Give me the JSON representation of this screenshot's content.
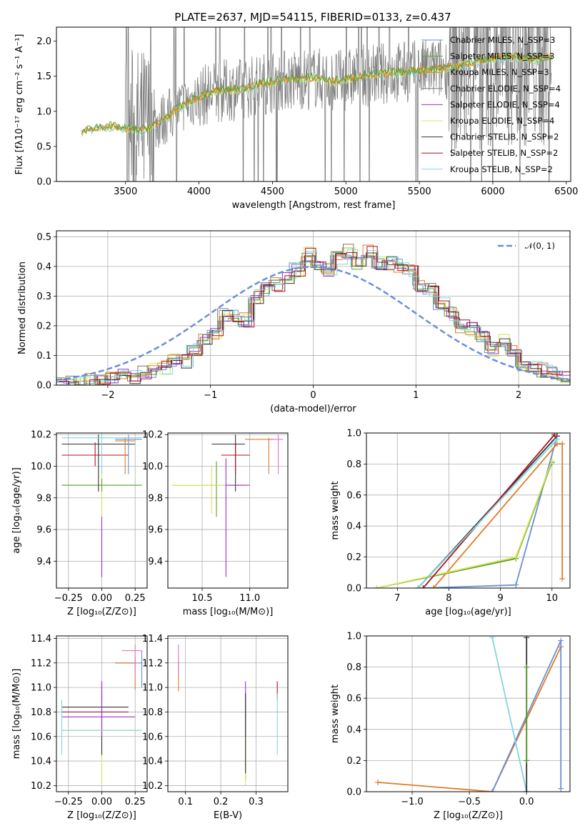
{
  "title": "PLATE=2637, MJD=54115, FIBERID=0133, z=0.437",
  "colors": {
    "chabrier_miles": "#6a8fd8",
    "salpeter_miles": "#5aa02c",
    "kroupa_miles": "#e07b2a",
    "chabrier_elodie": "#777777",
    "salpeter_elodie": "#9b30d0",
    "kroupa_elodie": "#d8e35a",
    "chabrier_stelib": "#333333",
    "salpeter_stelib": "#b01020",
    "kroupa_stelib": "#7fd6e0",
    "pink": "#e377c2",
    "gaussian": "#6a8fd8",
    "grid": "#b0b0b0"
  },
  "chart_data": [
    {
      "id": "spectrum",
      "type": "line",
      "xlabel": "wavelength [Angstrom, rest frame]",
      "ylabel": "Flux [fλ10⁻¹⁷ erg cm⁻² s⁻¹ A⁻¹]",
      "xlim": [
        3030,
        6530
      ],
      "ylim": [
        0,
        2.2
      ],
      "xticks": [
        "3500",
        "4000",
        "4500",
        "5000",
        "5500",
        "6000",
        "6500"
      ],
      "yticks": [
        "0.0",
        "0.5",
        "1.0",
        "1.5",
        "2.0"
      ],
      "legend_position": "top-right",
      "legend": [
        "Chabrier MILES, N_SSP=3",
        "Salpeter MILES, N_SSP=3",
        "Kroupa MILES, N_SSP=3",
        "Chabrier ELODIE, N_SSP=4",
        "Salpeter ELODIE, N_SSP=4",
        "Kroupa ELODIE, N_SSP=4",
        "Chabrier STELIB, N_SSP=2",
        "Salpeter STELIB, N_SSP=2",
        "Kroupa STELIB, N_SSP=2"
      ],
      "series": [
        {
          "x": [
            3200,
            3300,
            3400,
            3500,
            3600,
            3700,
            3800,
            3900,
            4000,
            4100,
            4200,
            4300,
            4400,
            4500,
            4600,
            4700,
            4800,
            4900,
            5000,
            5100,
            5200,
            5300,
            5400,
            5500,
            5600,
            5700,
            5800,
            5900,
            6000,
            6100,
            6200,
            6300,
            6400
          ],
          "y": [
            0.7,
            0.77,
            0.78,
            0.75,
            0.72,
            0.8,
            0.95,
            1.1,
            1.2,
            1.28,
            1.3,
            1.32,
            1.38,
            1.42,
            1.45,
            1.46,
            1.48,
            1.42,
            1.45,
            1.5,
            1.52,
            1.55,
            1.56,
            1.58,
            1.6,
            1.62,
            1.66,
            1.72,
            1.75,
            1.78,
            1.76,
            1.74,
            1.78
          ]
        }
      ]
    },
    {
      "id": "residuals",
      "type": "bar",
      "xlabel": "(data-model)/error",
      "ylabel": "Normed distribution",
      "xlim": [
        -2.5,
        2.5
      ],
      "ylim": [
        0,
        0.52
      ],
      "xticks": [
        "−2",
        "−1",
        "0",
        "1",
        "2"
      ],
      "yticks": [
        "0.0",
        "0.1",
        "0.2",
        "0.3",
        "0.4",
        "0.5"
      ],
      "legend": [
        "𝒩(0, 1)"
      ],
      "bin_width": 0.1,
      "bin_start": -2.5,
      "histogram": [
        0.0,
        0.01,
        0.01,
        0.02,
        0.02,
        0.02,
        0.03,
        0.03,
        0.04,
        0.05,
        0.06,
        0.08,
        0.08,
        0.12,
        0.15,
        0.18,
        0.24,
        0.23,
        0.22,
        0.3,
        0.32,
        0.34,
        0.36,
        0.39,
        0.44,
        0.4,
        0.39,
        0.43,
        0.45,
        0.41,
        0.45,
        0.41,
        0.41,
        0.4,
        0.38,
        0.33,
        0.32,
        0.27,
        0.24,
        0.2,
        0.19,
        0.16,
        0.12,
        0.15,
        0.11,
        0.06,
        0.06,
        0.05,
        0.04,
        0.03
      ]
    },
    {
      "id": "age_vs_Z",
      "type": "scatter",
      "xlabel": "Z [log₁₀(Z/Z⊙)]",
      "ylabel": "age  [log₁₀(age/yr)]",
      "xlim": [
        -0.34,
        0.34
      ],
      "ylim": [
        9.23,
        10.21
      ],
      "xticks": [
        "−0.25",
        "0.00",
        "0.25"
      ],
      "yticks": [
        "9.4",
        "9.6",
        "9.8",
        "10.0",
        "10.2"
      ],
      "points": [
        {
          "c": "kroupa_elodie",
          "x": [
            -0.3,
            0.3
          ],
          "y": [
            9.88,
            9.88
          ],
          "xe": [
            -0.3,
            0.3
          ],
          "ye": [
            9.7,
            10.0
          ]
        },
        {
          "c": "salpeter_miles",
          "x": [
            -0.3,
            0.3
          ],
          "y": [
            9.88,
            9.88
          ],
          "xe": [
            -0.3,
            0.3
          ],
          "ye": [
            9.84,
            9.92
          ]
        },
        {
          "c": "chabrier_stelib",
          "x": [
            -0.3,
            0.25
          ],
          "y": [
            10.14,
            10.14
          ],
          "xe": [
            -0.3,
            0.25
          ],
          "ye": [
            9.84,
            10.2
          ]
        },
        {
          "c": "salpeter_stelib",
          "x": [
            -0.3,
            0.2
          ],
          "y": [
            10.07,
            10.07
          ],
          "xe": [
            -0.3,
            0.2
          ],
          "ye": [
            10.0,
            10.15
          ]
        },
        {
          "c": "chabrier_miles",
          "x": [
            0.1,
            0.3
          ],
          "y": [
            10.17,
            10.17
          ],
          "xe": [
            0.1,
            0.3
          ],
          "ye": [
            9.95,
            10.2
          ]
        },
        {
          "c": "kroupa_stelib",
          "x": [
            -0.3,
            0.3
          ],
          "y": [
            10.18,
            10.18
          ],
          "xe": [
            -0.3,
            0.3
          ],
          "ye": [
            9.95,
            10.2
          ]
        },
        {
          "c": "salpeter_elodie",
          "x": [
            0,
            0
          ],
          "y": [
            9.5,
            9.5
          ],
          "xe": [
            0,
            0
          ],
          "ye": [
            9.3,
            9.68
          ]
        },
        {
          "c": "kroupa_miles",
          "x": [
            0.1,
            0.25
          ],
          "y": [
            10.16,
            10.16
          ],
          "xe": [
            0.1,
            0.25
          ],
          "ye": [
            9.95,
            10.18
          ]
        }
      ]
    },
    {
      "id": "age_vs_mass",
      "type": "scatter",
      "xlabel": "mass [log₁₀(M/M⊙)]",
      "ylabel": "",
      "xlim": [
        10.14,
        11.4
      ],
      "ylim": [
        9.23,
        10.21
      ],
      "xticks": [
        "10.5",
        "11.0"
      ],
      "yticks": [
        "9.4",
        "9.6",
        "9.8",
        "10.0",
        "10.2"
      ],
      "points": [
        {
          "c": "salpeter_miles",
          "x": 10.65,
          "y": 9.88,
          "xe": [
            10.18,
            10.95
          ],
          "ye": [
            9.68,
            10.03
          ]
        },
        {
          "c": "kroupa_elodie",
          "x": 10.6,
          "y": 9.88,
          "xe": [
            10.18,
            10.95
          ],
          "ye": [
            9.7,
            10.0
          ]
        },
        {
          "c": "chabrier_stelib",
          "x": 10.85,
          "y": 10.14,
          "xe": [
            10.6,
            10.95
          ],
          "ye": [
            9.84,
            10.2
          ]
        },
        {
          "c": "salpeter_stelib",
          "x": 10.85,
          "y": 10.07,
          "xe": [
            10.7,
            11.0
          ],
          "ye": [
            9.95,
            10.15
          ]
        },
        {
          "c": "salpeter_elodie",
          "x": 10.75,
          "y": 9.88,
          "xe": [
            10.75,
            11.0
          ],
          "ye": [
            9.3,
            10.05
          ]
        },
        {
          "c": "kroupa_miles",
          "x": 11.2,
          "y": 10.17,
          "xe": [
            10.95,
            11.25
          ],
          "ye": [
            9.95,
            10.18
          ]
        },
        {
          "c": "pink",
          "x": 11.3,
          "y": 10.17,
          "xe": [
            11.2,
            11.35
          ],
          "ye": [
            9.95,
            10.2
          ]
        }
      ]
    },
    {
      "id": "weight_vs_age",
      "type": "line",
      "xlabel": "age  [log₁₀(age/yr)]",
      "ylabel": "mass weight",
      "xlim": [
        6.4,
        10.35
      ],
      "ylim": [
        0,
        1.0
      ],
      "xticks": [
        "7",
        "8",
        "9",
        "10"
      ],
      "yticks": [
        "0.0",
        "0.2",
        "0.4",
        "0.6",
        "0.8",
        "1.0"
      ],
      "series": [
        {
          "c": "chabrier_miles",
          "x": [
            7.5,
            9.3,
            10.1
          ],
          "y": [
            0.0,
            0.02,
            0.98
          ]
        },
        {
          "c": "salpeter_miles",
          "x": [
            6.6,
            9.3,
            10.0
          ],
          "y": [
            0.0,
            0.19,
            0.81
          ]
        },
        {
          "c": "kroupa_miles",
          "x": [
            7.7,
            10.1,
            10.2,
            10.2
          ],
          "y": [
            0.0,
            0.93,
            0.93,
            0.06
          ]
        },
        {
          "c": "kroupa_elodie",
          "x": [
            6.6,
            9.3,
            10.0
          ],
          "y": [
            0.0,
            0.2,
            0.82
          ]
        },
        {
          "c": "chabrier_stelib",
          "x": [
            7.4,
            10.1
          ],
          "y": [
            0.0,
            0.98
          ]
        },
        {
          "c": "salpeter_stelib",
          "x": [
            7.5,
            10.05
          ],
          "y": [
            0.0,
            0.99
          ]
        },
        {
          "c": "kroupa_stelib",
          "x": [
            7.4,
            10.1
          ],
          "y": [
            0.0,
            0.96
          ]
        }
      ]
    },
    {
      "id": "mass_vs_Z",
      "type": "scatter",
      "xlabel": "Z [log₁₀(Z/Z⊙)]",
      "ylabel": "mass [log₁₀(M/M⊙)]",
      "xlim": [
        -0.34,
        0.34
      ],
      "ylim": [
        10.15,
        11.42
      ],
      "xticks": [
        "−0.25",
        "0.00",
        "0.25"
      ],
      "yticks": [
        "10.2",
        "10.4",
        "10.6",
        "10.8",
        "11.0",
        "11.2",
        "11.4"
      ],
      "points": [
        {
          "c": "kroupa_elodie",
          "x": 0,
          "y": 10.65,
          "xe": [
            -0.3,
            0.3
          ],
          "ye": [
            10.2,
            11.0
          ]
        },
        {
          "c": "chabrier_stelib",
          "x": 0,
          "y": 10.84,
          "xe": [
            -0.3,
            0.2
          ],
          "ye": [
            10.45,
            10.95
          ]
        },
        {
          "c": "salpeter_stelib",
          "x": 0,
          "y": 10.8,
          "xe": [
            -0.3,
            0.2
          ],
          "ye": [
            10.9,
            11.05
          ]
        },
        {
          "c": "salpeter_elodie",
          "x": 0,
          "y": 10.76,
          "xe": [
            -0.3,
            0.25
          ],
          "ye": [
            10.6,
            11.05
          ]
        },
        {
          "c": "kroupa_stelib",
          "x": -0.3,
          "y": 10.65,
          "xe": [
            -0.3,
            0.3
          ],
          "ye": [
            10.45,
            10.9
          ]
        },
        {
          "c": "chabrier_miles",
          "x": 0.3,
          "y": 11.2,
          "xe": [
            0.1,
            0.3
          ],
          "ye": [
            11.0,
            11.3
          ]
        },
        {
          "c": "kroupa_miles",
          "x": 0.25,
          "y": 11.2,
          "xe": [
            0.1,
            0.25
          ],
          "ye": [
            10.98,
            11.25
          ]
        },
        {
          "c": "pink",
          "x": 0.25,
          "y": 11.3,
          "xe": [
            0.15,
            0.3
          ],
          "ye": [
            11.1,
            11.35
          ]
        }
      ]
    },
    {
      "id": "mass_vs_ebv",
      "type": "scatter",
      "xlabel": "E(B-V)",
      "ylabel": "",
      "xlim": [
        0.05,
        0.39
      ],
      "ylim": [
        10.15,
        11.42
      ],
      "xticks": [
        "0.1",
        "0.2",
        "0.3"
      ],
      "yticks": [
        "10.2",
        "10.4",
        "10.6",
        "10.8",
        "11.0",
        "11.2",
        "11.4"
      ],
      "points": [
        {
          "c": "kroupa_miles",
          "x": 0.08,
          "y": 11.1,
          "xe": [
            0.08,
            0.08
          ],
          "ye": [
            10.97,
            11.22
          ]
        },
        {
          "c": "pink",
          "x": 0.08,
          "y": 11.25,
          "xe": [
            0.08,
            0.08
          ],
          "ye": [
            11.1,
            11.35
          ]
        },
        {
          "c": "salpeter_miles",
          "x": 0.27,
          "y": 10.6,
          "xe": [
            0.27,
            0.27
          ],
          "ye": [
            10.25,
            10.95
          ]
        },
        {
          "c": "kroupa_elodie",
          "x": 0.27,
          "y": 10.6,
          "xe": [
            0.27,
            0.27
          ],
          "ye": [
            10.2,
            10.98
          ]
        },
        {
          "c": "salpeter_elodie",
          "x": 0.27,
          "y": 10.8,
          "xe": [
            0.27,
            0.27
          ],
          "ye": [
            10.6,
            11.05
          ]
        },
        {
          "c": "chabrier_stelib",
          "x": 0.27,
          "y": 10.5,
          "xe": [
            0.27,
            0.27
          ],
          "ye": [
            10.3,
            10.95
          ]
        },
        {
          "c": "salpeter_stelib",
          "x": 0.36,
          "y": 10.95,
          "xe": [
            0.36,
            0.36
          ],
          "ye": [
            10.9,
            11.05
          ]
        },
        {
          "c": "kroupa_stelib",
          "x": 0.36,
          "y": 10.7,
          "xe": [
            0.36,
            0.36
          ],
          "ye": [
            10.45,
            10.95
          ]
        }
      ]
    },
    {
      "id": "weight_vs_Z",
      "type": "line",
      "xlabel": "Z [log₁₀(Z/Z⊙)]",
      "ylabel": "mass weight",
      "xlim": [
        -1.4,
        0.38
      ],
      "ylim": [
        0,
        1.0
      ],
      "xticks": [
        "−1.0",
        "−0.5",
        "0.0"
      ],
      "yticks": [
        "0.0",
        "0.2",
        "0.4",
        "0.6",
        "0.8",
        "1.0"
      ],
      "series": [
        {
          "c": "kroupa_miles",
          "x": [
            -1.3,
            -0.3,
            0.3
          ],
          "y": [
            0.06,
            0.0,
            0.93
          ]
        },
        {
          "c": "chabrier_miles",
          "x": [
            -0.3,
            0.3,
            0.3
          ],
          "y": [
            0.0,
            0.97,
            0.02
          ]
        },
        {
          "c": "kroupa_stelib",
          "x": [
            -0.3,
            0.0
          ],
          "y": [
            0.99,
            0.0
          ]
        },
        {
          "c": "chabrier_stelib",
          "x": [
            0.0,
            0.0
          ],
          "y": [
            0.0,
            0.99
          ]
        },
        {
          "c": "salpeter_miles",
          "x": [
            0.0,
            0.0
          ],
          "y": [
            0.2,
            0.8
          ]
        }
      ]
    }
  ]
}
